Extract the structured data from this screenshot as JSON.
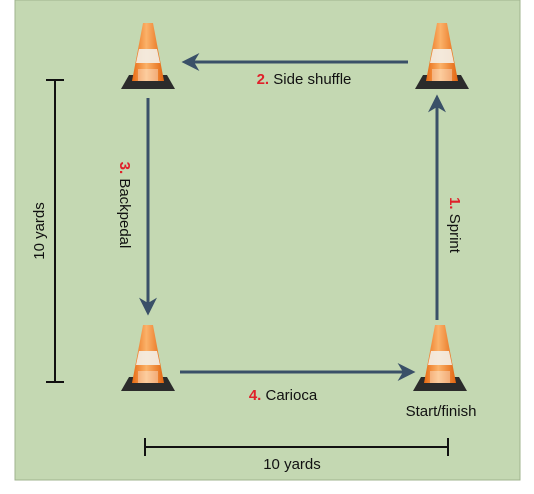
{
  "steps": [
    {
      "number": "1.",
      "label": "Sprint"
    },
    {
      "number": "2.",
      "label": "Side shuffle"
    },
    {
      "number": "3.",
      "label": "Backpedal"
    },
    {
      "number": "4.",
      "label": "Carioca"
    }
  ],
  "start_label": "Start/finish",
  "dimensions": {
    "vertical": "10 yards",
    "horizontal": "10 yards"
  }
}
